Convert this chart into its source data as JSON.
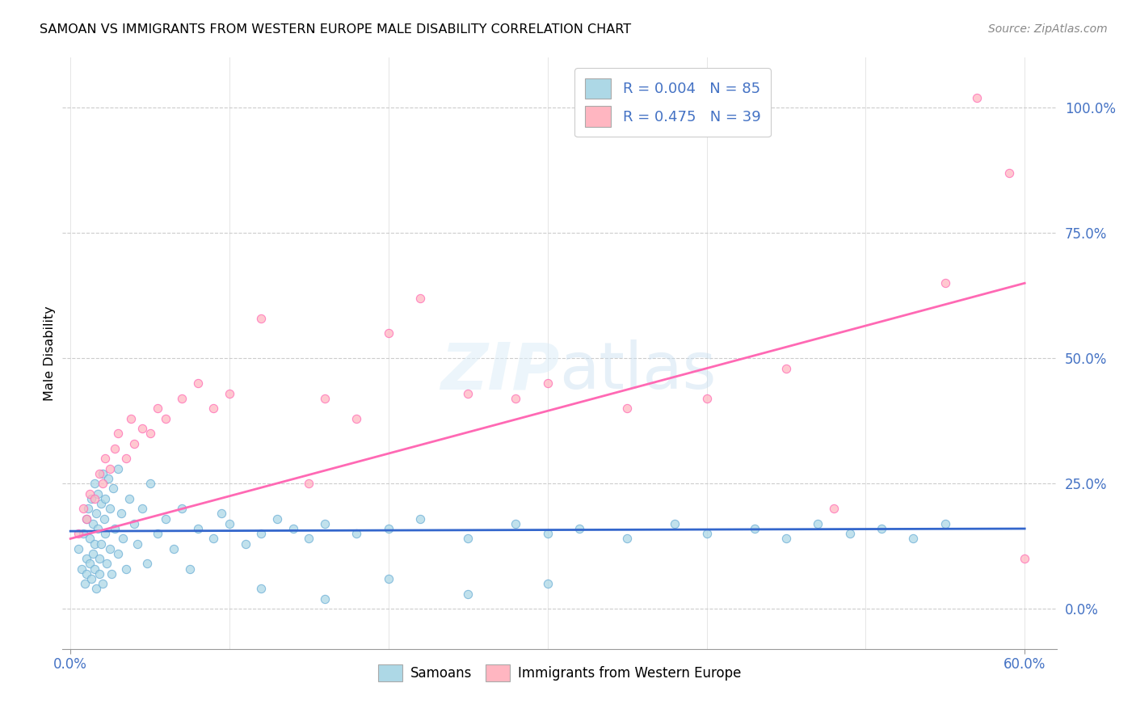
{
  "title": "SAMOAN VS IMMIGRANTS FROM WESTERN EUROPE MALE DISABILITY CORRELATION CHART",
  "source": "Source: ZipAtlas.com",
  "ylabel": "Male Disability",
  "ytick_labels": [
    "0.0%",
    "25.0%",
    "50.0%",
    "75.0%",
    "100.0%"
  ],
  "ytick_values": [
    0.0,
    0.25,
    0.5,
    0.75,
    1.0
  ],
  "xlim": [
    0.0,
    0.6
  ],
  "ylim": [
    -0.08,
    1.1
  ],
  "watermark": "ZIPatlas",
  "samoans_color": "#ADD8E6",
  "samoans_edge": "#6baed6",
  "immigrants_color": "#FFB6C1",
  "immigrants_edge": "#FF69B4",
  "samoans_line_color": "#3366CC",
  "immigrants_line_color": "#FF69B4",
  "samoans_x": [
    0.005,
    0.007,
    0.008,
    0.009,
    0.01,
    0.01,
    0.01,
    0.011,
    0.012,
    0.012,
    0.013,
    0.013,
    0.014,
    0.014,
    0.015,
    0.015,
    0.015,
    0.016,
    0.016,
    0.017,
    0.017,
    0.018,
    0.018,
    0.019,
    0.019,
    0.02,
    0.02,
    0.021,
    0.022,
    0.022,
    0.023,
    0.024,
    0.025,
    0.025,
    0.026,
    0.027,
    0.028,
    0.03,
    0.03,
    0.032,
    0.033,
    0.035,
    0.037,
    0.04,
    0.042,
    0.045,
    0.048,
    0.05,
    0.055,
    0.06,
    0.065,
    0.07,
    0.075,
    0.08,
    0.09,
    0.095,
    0.1,
    0.11,
    0.12,
    0.13,
    0.14,
    0.15,
    0.16,
    0.18,
    0.2,
    0.22,
    0.25,
    0.28,
    0.3,
    0.32,
    0.35,
    0.38,
    0.4,
    0.43,
    0.45,
    0.47,
    0.49,
    0.51,
    0.53,
    0.55,
    0.12,
    0.16,
    0.2,
    0.25,
    0.3
  ],
  "samoans_y": [
    0.12,
    0.08,
    0.15,
    0.05,
    0.18,
    0.1,
    0.07,
    0.2,
    0.14,
    0.09,
    0.22,
    0.06,
    0.17,
    0.11,
    0.25,
    0.08,
    0.13,
    0.19,
    0.04,
    0.16,
    0.23,
    0.1,
    0.07,
    0.21,
    0.13,
    0.27,
    0.05,
    0.18,
    0.15,
    0.22,
    0.09,
    0.26,
    0.12,
    0.2,
    0.07,
    0.24,
    0.16,
    0.28,
    0.11,
    0.19,
    0.14,
    0.08,
    0.22,
    0.17,
    0.13,
    0.2,
    0.09,
    0.25,
    0.15,
    0.18,
    0.12,
    0.2,
    0.08,
    0.16,
    0.14,
    0.19,
    0.17,
    0.13,
    0.15,
    0.18,
    0.16,
    0.14,
    0.17,
    0.15,
    0.16,
    0.18,
    0.14,
    0.17,
    0.15,
    0.16,
    0.14,
    0.17,
    0.15,
    0.16,
    0.14,
    0.17,
    0.15,
    0.16,
    0.14,
    0.17,
    0.04,
    0.02,
    0.06,
    0.03,
    0.05
  ],
  "samoans_line_x": [
    0.0,
    0.6
  ],
  "samoans_line_y": [
    0.155,
    0.16
  ],
  "immigrants_x": [
    0.005,
    0.008,
    0.01,
    0.012,
    0.015,
    0.018,
    0.02,
    0.022,
    0.025,
    0.028,
    0.03,
    0.035,
    0.038,
    0.04,
    0.045,
    0.05,
    0.055,
    0.06,
    0.07,
    0.08,
    0.09,
    0.1,
    0.12,
    0.15,
    0.16,
    0.18,
    0.2,
    0.22,
    0.25,
    0.28,
    0.3,
    0.35,
    0.4,
    0.45,
    0.48,
    0.55,
    0.57,
    0.59,
    0.6
  ],
  "immigrants_y": [
    0.15,
    0.2,
    0.18,
    0.23,
    0.22,
    0.27,
    0.25,
    0.3,
    0.28,
    0.32,
    0.35,
    0.3,
    0.38,
    0.33,
    0.36,
    0.35,
    0.4,
    0.38,
    0.42,
    0.45,
    0.4,
    0.43,
    0.58,
    0.25,
    0.42,
    0.38,
    0.55,
    0.62,
    0.43,
    0.42,
    0.45,
    0.4,
    0.42,
    0.48,
    0.2,
    0.65,
    1.02,
    0.87,
    0.1
  ],
  "immigrants_line_x": [
    0.0,
    0.6
  ],
  "immigrants_line_y": [
    0.14,
    0.65
  ]
}
